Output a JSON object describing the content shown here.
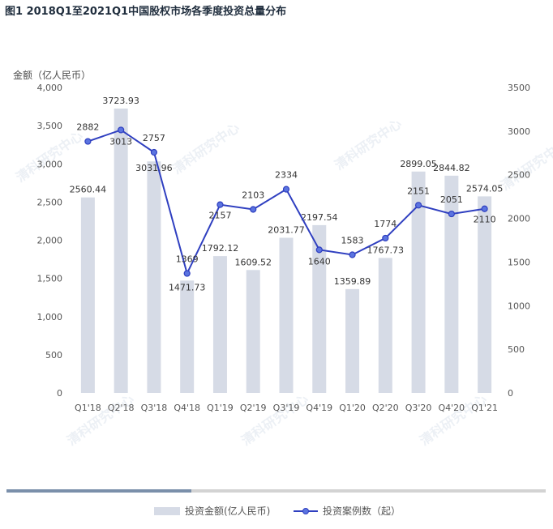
{
  "title": "图1 2018Q1至2021Q1中国股权市场各季度投资总量分布",
  "y_axis_title": "金额（亿人民币）",
  "legend": {
    "bar_label": "投资金额(亿人民币)",
    "line_label": "投资案例数（起）"
  },
  "watermark": [
    "清科研究中心",
    "Zero2IPO Research"
  ],
  "colors": {
    "bar": "#d6dbe6",
    "line": "#2f3fc0",
    "marker": "#5b74e0",
    "axis_text": "#555555"
  },
  "chart_data": {
    "type": "bar",
    "categories": [
      "Q1'18",
      "Q2'18",
      "Q3'18",
      "Q4'18",
      "Q1'19",
      "Q2'19",
      "Q3'19",
      "Q4'19",
      "Q1'20",
      "Q2'20",
      "Q3'20",
      "Q4'20",
      "Q1'21"
    ],
    "series": [
      {
        "name": "投资金额(亿人民币)",
        "type": "bar",
        "axis": "left",
        "values": [
          2560.44,
          3723.93,
          3031.96,
          1471.73,
          1792.12,
          1609.52,
          2031.77,
          2197.54,
          1359.89,
          1767.73,
          2899.05,
          2844.82,
          2574.05
        ]
      },
      {
        "name": "投资案例数（起）",
        "type": "line",
        "axis": "right",
        "values": [
          2882,
          3013,
          2757,
          1369,
          2157,
          2103,
          2334,
          1640,
          1583,
          1774,
          2151,
          2051,
          2110
        ]
      }
    ],
    "ylabel": "金额（亿人民币）",
    "ylim": [
      0,
      4000
    ],
    "y_ticks": [
      "0",
      "500",
      "1,000",
      "1,500",
      "2,000",
      "2,500",
      "3,000",
      "3,500",
      "4,000"
    ],
    "y2lim": [
      0,
      3500
    ],
    "y2_ticks": [
      "0",
      "500",
      "1000",
      "1500",
      "2000",
      "2500",
      "3000",
      "3500"
    ],
    "bar_labels": [
      "2560.44",
      "3723.93",
      "3031.96",
      "1471.73",
      "1792.12",
      "1609.52",
      "2031.77",
      "2197.54",
      "1359.89",
      "1767.73",
      "2899.05",
      "2844.82",
      "2574.05"
    ],
    "line_labels": [
      "2882",
      "3013",
      "2757",
      "1369",
      "2157",
      "2103",
      "2334",
      "1640",
      "1583",
      "1774",
      "2151",
      "2051",
      "2110"
    ],
    "grid": false,
    "legend_position": "bottom"
  }
}
